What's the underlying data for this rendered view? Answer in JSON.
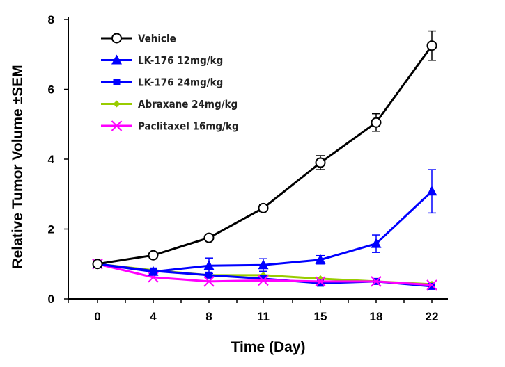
{
  "chart_data": {
    "type": "line",
    "xlabel": "Time (Day)",
    "ylabel": "Relative Tumor Volume ±SEM",
    "x": [
      0,
      4,
      8,
      11,
      15,
      18,
      22
    ],
    "xlim": [
      0,
      22
    ],
    "ylim": [
      0,
      8
    ],
    "yticks": [
      0,
      2,
      4,
      6,
      8
    ],
    "grid": false,
    "legend_position": "top-left",
    "series": [
      {
        "name": "Vehicle",
        "color": "#000000",
        "marker": "open-circle",
        "values": [
          1.0,
          1.25,
          1.75,
          2.6,
          3.9,
          5.05,
          7.25
        ],
        "errors": [
          0,
          0.05,
          0.08,
          0.1,
          0.2,
          0.25,
          0.42
        ]
      },
      {
        "name": "LK-176  12mg/kg",
        "color": "#0000ff",
        "marker": "triangle",
        "values": [
          1.0,
          0.78,
          0.95,
          0.97,
          1.12,
          1.58,
          3.08
        ],
        "errors": [
          0,
          0.05,
          0.22,
          0.18,
          0.12,
          0.25,
          0.62
        ]
      },
      {
        "name": "LK-176  24mg/kg",
        "color": "#0000ff",
        "marker": "square",
        "values": [
          1.0,
          0.8,
          0.68,
          0.58,
          0.45,
          0.5,
          0.36
        ],
        "errors": [
          0,
          0.04,
          0.05,
          0.05,
          0.04,
          0.04,
          0.03
        ]
      },
      {
        "name": "Abraxane  24mg/kg",
        "color": "#99cc00",
        "marker": "diamond",
        "values": [
          1.0,
          0.82,
          0.68,
          0.68,
          0.58,
          0.5,
          0.42
        ],
        "errors": [
          0,
          0.03,
          0.03,
          0.03,
          0.03,
          0.03,
          0.03
        ]
      },
      {
        "name": "Paclitaxel  16mg/kg",
        "color": "#ff00ff",
        "marker": "x",
        "values": [
          1.0,
          0.62,
          0.5,
          0.53,
          0.5,
          0.5,
          0.4
        ],
        "errors": [
          0,
          0.03,
          0.03,
          0.03,
          0.03,
          0.03,
          0.03
        ]
      }
    ]
  }
}
